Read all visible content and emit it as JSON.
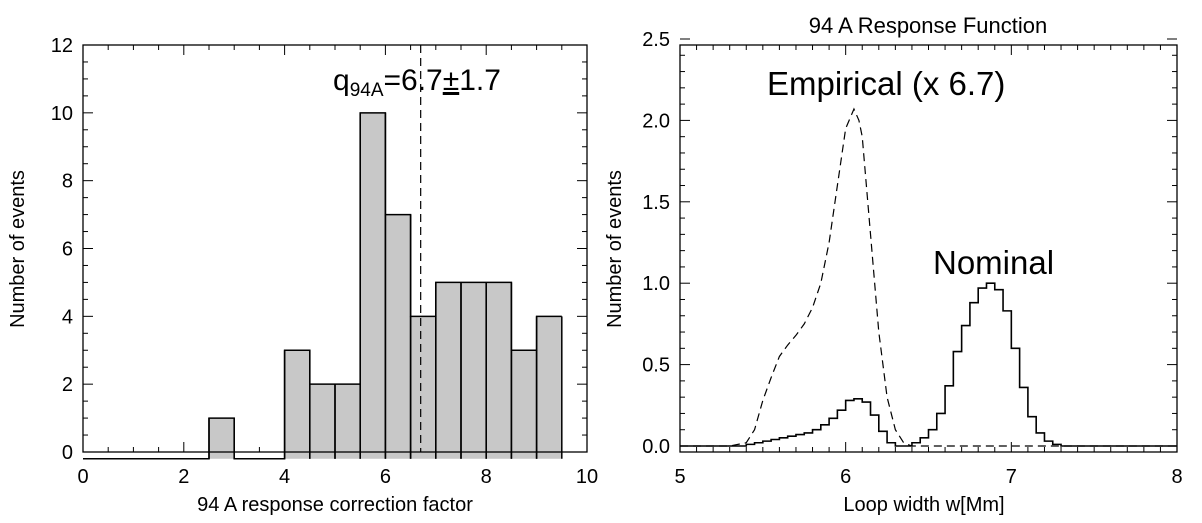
{
  "chart_data": [
    {
      "type": "bar",
      "title": "",
      "xlabel": "94 A response correction factor",
      "ylabel": "Number of events",
      "xlim": [
        0,
        10
      ],
      "ylim": [
        0,
        12
      ],
      "xticks": [
        "0",
        "2",
        "4",
        "6",
        "8",
        "10"
      ],
      "yticks": [
        "0",
        "2",
        "4",
        "6",
        "8",
        "10",
        "12"
      ],
      "bin_width": 0.5,
      "bin_starts": [
        0,
        0.5,
        1,
        1.5,
        2,
        2.5,
        3,
        3.5,
        4,
        4.5,
        5,
        5.5,
        6,
        6.5,
        7,
        7.5,
        8,
        8.5,
        9
      ],
      "values": [
        0,
        0,
        0,
        0,
        0,
        1,
        0,
        0,
        3,
        2,
        2,
        10,
        7,
        4,
        5,
        5,
        5,
        3,
        4
      ],
      "mean_line_x": 6.7,
      "annotation": {
        "base": "q",
        "subscript": "94A",
        "value": "=6.7",
        "pm": "±",
        "error": "1.7"
      }
    },
    {
      "type": "line",
      "title": "94 A Response Function",
      "xlabel": "Loop width  w[Mm]",
      "ylabel": "Number of events",
      "xlim": [
        5,
        8
      ],
      "ylim": [
        0,
        2.5
      ],
      "xticks": [
        "5",
        "6",
        "7",
        "8"
      ],
      "yticks": [
        "0.0",
        "0.5",
        "1.0",
        "1.5",
        "2.0",
        "2.5"
      ],
      "series": [
        {
          "name": "Empirical (x 6.7)",
          "style": "dashed",
          "x": [
            5.0,
            5.3,
            5.4,
            5.45,
            5.5,
            5.55,
            5.6,
            5.65,
            5.7,
            5.75,
            5.8,
            5.85,
            5.9,
            5.95,
            6.0,
            6.05,
            6.08,
            6.1,
            6.15,
            6.2,
            6.25,
            6.3,
            6.35,
            6.4,
            6.5,
            7.0,
            8.0
          ],
          "y": [
            0.0,
            0.0,
            0.02,
            0.1,
            0.28,
            0.42,
            0.55,
            0.62,
            0.68,
            0.75,
            0.85,
            1.0,
            1.25,
            1.6,
            1.95,
            2.07,
            2.0,
            1.9,
            1.3,
            0.7,
            0.3,
            0.1,
            0.02,
            0.0,
            0.0,
            0.0,
            0.0
          ]
        },
        {
          "name": "",
          "style": "step",
          "x": [
            5.0,
            5.3,
            5.35,
            5.4,
            5.45,
            5.5,
            5.55,
            5.6,
            5.65,
            5.7,
            5.75,
            5.8,
            5.85,
            5.9,
            5.95,
            6.0,
            6.05,
            6.1,
            6.15,
            6.2,
            6.25,
            6.3,
            6.35,
            6.4,
            6.45,
            6.5,
            6.55,
            6.6,
            6.65,
            6.7,
            6.75,
            6.8,
            6.85,
            6.9,
            6.95,
            7.0,
            7.05,
            7.1,
            7.15,
            7.2,
            7.25,
            7.3,
            7.35,
            8.0
          ],
          "y": [
            0.0,
            0.0,
            0.0,
            0.01,
            0.02,
            0.03,
            0.04,
            0.05,
            0.06,
            0.07,
            0.08,
            0.1,
            0.13,
            0.17,
            0.22,
            0.28,
            0.29,
            0.27,
            0.19,
            0.09,
            0.02,
            0.0,
            0.0,
            0.02,
            0.05,
            0.1,
            0.2,
            0.37,
            0.58,
            0.74,
            0.88,
            0.97,
            1.0,
            0.96,
            0.83,
            0.6,
            0.36,
            0.18,
            0.08,
            0.03,
            0.01,
            0.0,
            0.0,
            0.0
          ]
        }
      ],
      "annotations": [
        "Empirical (x 6.7)",
        "Nominal"
      ]
    }
  ]
}
